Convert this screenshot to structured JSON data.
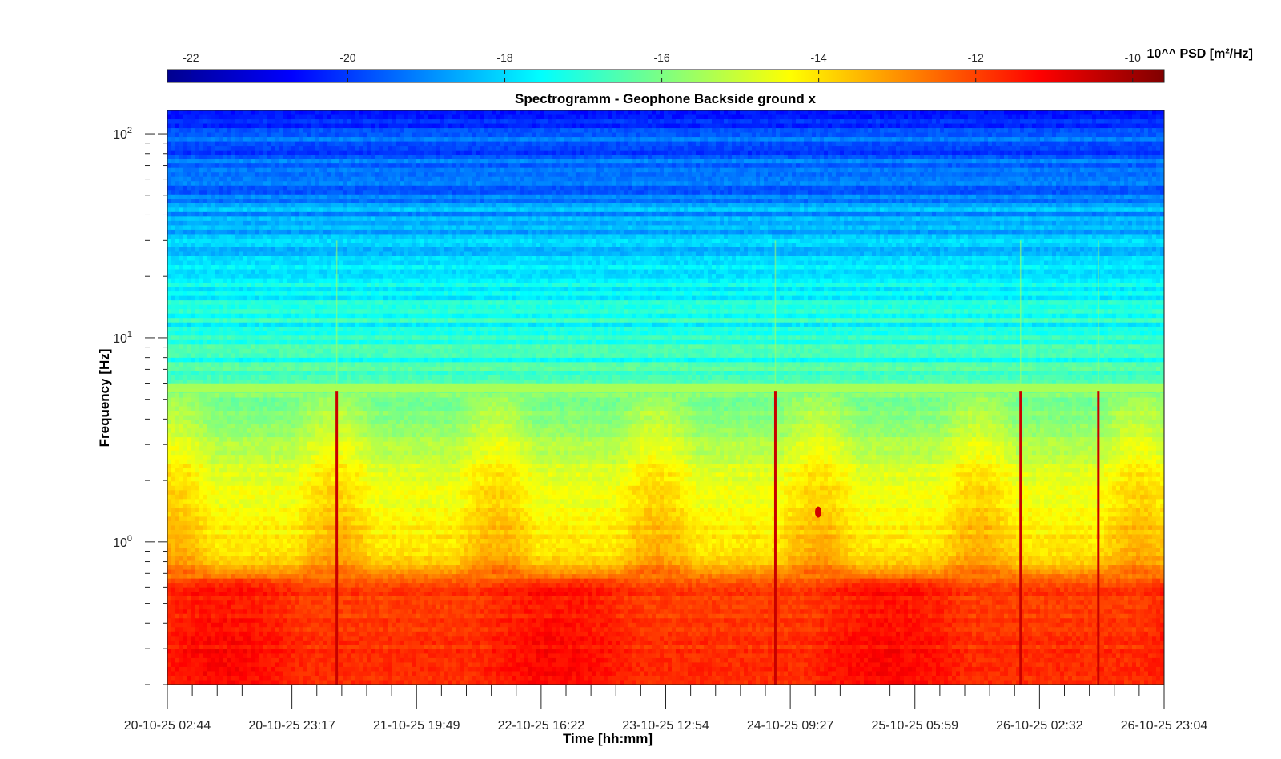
{
  "chart_data": {
    "type": "heatmap",
    "title": "Spectrogramm - Geophone Backside ground x",
    "xlabel": "Time [hh:mm]",
    "ylabel": "Frequency [Hz]",
    "y_scale": "log",
    "ylim": [
      0.2,
      130
    ],
    "y_ticks": [
      {
        "value": 1,
        "base": "10",
        "exp": "0"
      },
      {
        "value": 10,
        "base": "10",
        "exp": "1"
      },
      {
        "value": 100,
        "base": "10",
        "exp": "2"
      }
    ],
    "x_tick_labels": [
      "20-10-25 02:44",
      "20-10-25 23:17",
      "21-10-25 19:49",
      "22-10-25 16:22",
      "23-10-25 12:54",
      "24-10-25 09:27",
      "25-10-25 05:59",
      "26-10-25 02:32",
      "26-10-25 23:04"
    ],
    "colorbar": {
      "label": "10^^ PSD [m²/Hz]",
      "range": [
        -22.3,
        -9.6
      ],
      "ticks": [
        -22,
        -20,
        -18,
        -16,
        -14,
        -12,
        -10
      ],
      "tick_labels": [
        "-22",
        "-20",
        "-18",
        "-16",
        "-14",
        "-12",
        "-10"
      ],
      "colormap": "jet"
    },
    "features": [
      {
        "name": "low-frequency band",
        "freq_range_hz": [
          0.2,
          0.7
        ],
        "log10_psd": -11.8
      },
      {
        "name": "mid band",
        "freq_range_hz": [
          0.7,
          5
        ],
        "log10_psd": -14.5
      },
      {
        "name": "narrow line",
        "freq_hz": 5.7,
        "log10_psd": -15.3
      },
      {
        "name": "upper band",
        "freq_range_hz": [
          5,
          40
        ],
        "log10_psd": -17.5
      },
      {
        "name": "high band",
        "freq_range_hz": [
          40,
          130
        ],
        "log10_psd": -19.6
      },
      {
        "name": "transient events",
        "x_frac": [
          0.17,
          0.61,
          0.856,
          0.934
        ],
        "log10_psd": -10.5
      },
      {
        "name": "local spot",
        "x_frac": 0.653,
        "freq_hz": 1.4,
        "log10_psd": -10.6
      }
    ]
  }
}
